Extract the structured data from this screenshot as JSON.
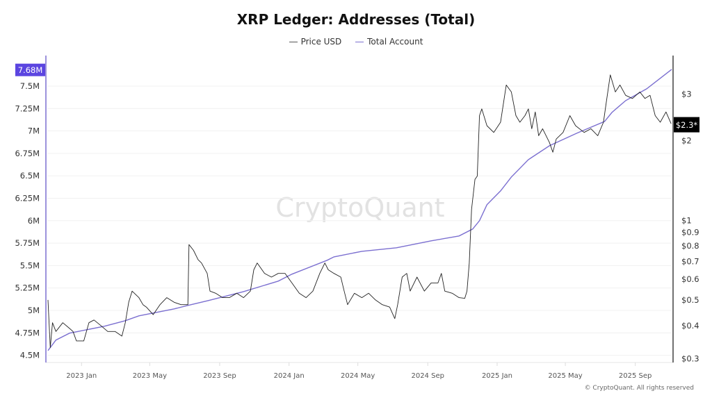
{
  "chart_data": {
    "type": "line",
    "title": "XRP Ledger: Addresses (Total)",
    "watermark": "CryptoQuant",
    "copyright": "© CryptoQuant. All rights reserved",
    "legend_placement": "top-center",
    "grid": true,
    "colors": {
      "price": "#222222",
      "account": "#7b6fd0",
      "left_axis": "#7b6fd0",
      "left_badge": "#5b45e0",
      "right_badge": "#000000"
    },
    "x_ticks": [
      {
        "date": "2023-01-01",
        "label": "2023 Jan"
      },
      {
        "date": "2023-05-01",
        "label": "2023 May"
      },
      {
        "date": "2023-09-01",
        "label": "2023 Sep"
      },
      {
        "date": "2024-01-01",
        "label": "2024 Jan"
      },
      {
        "date": "2024-05-01",
        "label": "2024 May"
      },
      {
        "date": "2024-09-01",
        "label": "2024 Sep"
      },
      {
        "date": "2025-01-01",
        "label": "2025 Jan"
      },
      {
        "date": "2025-05-01",
        "label": "2025 May"
      },
      {
        "date": "2025-09-01",
        "label": "2025 Sep"
      }
    ],
    "xlim": [
      "2022-11-03",
      "2025-11-04"
    ],
    "left_axis": {
      "ylim": [
        4.42,
        7.84
      ],
      "ticks": [
        {
          "v": 4.5,
          "label": "4.5M"
        },
        {
          "v": 4.75,
          "label": "4.75M"
        },
        {
          "v": 5,
          "label": "5M"
        },
        {
          "v": 5.25,
          "label": "5.25M"
        },
        {
          "v": 5.5,
          "label": "5.5M"
        },
        {
          "v": 5.75,
          "label": "5.75M"
        },
        {
          "v": 6,
          "label": "6M"
        },
        {
          "v": 6.25,
          "label": "6.25M"
        },
        {
          "v": 6.5,
          "label": "6.5M"
        },
        {
          "v": 6.75,
          "label": "6.75M"
        },
        {
          "v": 7,
          "label": "7M"
        },
        {
          "v": 7.25,
          "label": "7.25M"
        },
        {
          "v": 7.5,
          "label": "7.5M"
        }
      ],
      "current": {
        "v": 7.68,
        "label": "7.68M"
      }
    },
    "right_axis": {
      "scale": "log",
      "ylim": [
        0.29,
        4.2
      ],
      "ticks": [
        {
          "v": 0.3,
          "label": "$0.3"
        },
        {
          "v": 0.4,
          "label": "$0.4"
        },
        {
          "v": 0.5,
          "label": "$0.5"
        },
        {
          "v": 0.6,
          "label": "$0.6"
        },
        {
          "v": 0.7,
          "label": "$0.7"
        },
        {
          "v": 0.8,
          "label": "$0.8"
        },
        {
          "v": 0.9,
          "label": "$0.9"
        },
        {
          "v": 1,
          "label": "$1"
        },
        {
          "v": 2,
          "label": "$2"
        },
        {
          "v": 3,
          "label": "$3"
        }
      ],
      "current": {
        "v": 2.3,
        "label": "$2.3*"
      }
    },
    "series": [
      {
        "name": "Price USD",
        "axis": "right",
        "points": [
          [
            "2022-11-03",
            0.5
          ],
          [
            "2022-11-07",
            0.33
          ],
          [
            "2022-11-11",
            0.41
          ],
          [
            "2022-11-17",
            0.38
          ],
          [
            "2022-11-29",
            0.41
          ],
          [
            "2022-12-11",
            0.39
          ],
          [
            "2022-12-17",
            0.38
          ],
          [
            "2022-12-23",
            0.35
          ],
          [
            "2023-01-05",
            0.35
          ],
          [
            "2023-01-14",
            0.41
          ],
          [
            "2023-01-23",
            0.42
          ],
          [
            "2023-02-04",
            0.4
          ],
          [
            "2023-02-16",
            0.38
          ],
          [
            "2023-03-01",
            0.38
          ],
          [
            "2023-03-13",
            0.365
          ],
          [
            "2023-03-19",
            0.41
          ],
          [
            "2023-03-25",
            0.49
          ],
          [
            "2023-03-31",
            0.54
          ],
          [
            "2023-04-12",
            0.51
          ],
          [
            "2023-04-19",
            0.48
          ],
          [
            "2023-04-25",
            0.47
          ],
          [
            "2023-05-07",
            0.44
          ],
          [
            "2023-05-19",
            0.48
          ],
          [
            "2023-05-31",
            0.51
          ],
          [
            "2023-06-13",
            0.49
          ],
          [
            "2023-06-25",
            0.48
          ],
          [
            "2023-07-07",
            0.48
          ],
          [
            "2023-07-09",
            0.81
          ],
          [
            "2023-07-17",
            0.77
          ],
          [
            "2023-07-25",
            0.71
          ],
          [
            "2023-07-31",
            0.69
          ],
          [
            "2023-08-10",
            0.63
          ],
          [
            "2023-08-15",
            0.54
          ],
          [
            "2023-08-25",
            0.53
          ],
          [
            "2023-09-06",
            0.51
          ],
          [
            "2023-09-18",
            0.51
          ],
          [
            "2023-10-01",
            0.53
          ],
          [
            "2023-10-13",
            0.51
          ],
          [
            "2023-10-25",
            0.54
          ],
          [
            "2023-10-31",
            0.65
          ],
          [
            "2023-11-06",
            0.69
          ],
          [
            "2023-11-19",
            0.63
          ],
          [
            "2023-12-01",
            0.61
          ],
          [
            "2023-12-13",
            0.63
          ],
          [
            "2023-12-25",
            0.63
          ],
          [
            "2024-01-06",
            0.58
          ],
          [
            "2024-01-19",
            0.53
          ],
          [
            "2024-01-31",
            0.51
          ],
          [
            "2024-02-12",
            0.54
          ],
          [
            "2024-02-24",
            0.63
          ],
          [
            "2024-03-04",
            0.69
          ],
          [
            "2024-03-10",
            0.65
          ],
          [
            "2024-03-20",
            0.63
          ],
          [
            "2024-04-01",
            0.61
          ],
          [
            "2024-04-07",
            0.54
          ],
          [
            "2024-04-13",
            0.48
          ],
          [
            "2024-04-25",
            0.53
          ],
          [
            "2024-05-08",
            0.51
          ],
          [
            "2024-05-20",
            0.53
          ],
          [
            "2024-06-01",
            0.5
          ],
          [
            "2024-06-13",
            0.48
          ],
          [
            "2024-06-26",
            0.47
          ],
          [
            "2024-07-05",
            0.425
          ],
          [
            "2024-07-10",
            0.48
          ],
          [
            "2024-07-18",
            0.61
          ],
          [
            "2024-07-26",
            0.63
          ],
          [
            "2024-08-01",
            0.54
          ],
          [
            "2024-08-13",
            0.61
          ],
          [
            "2024-08-26",
            0.54
          ],
          [
            "2024-09-07",
            0.58
          ],
          [
            "2024-09-19",
            0.58
          ],
          [
            "2024-09-25",
            0.63
          ],
          [
            "2024-10-01",
            0.54
          ],
          [
            "2024-10-14",
            0.53
          ],
          [
            "2024-10-26",
            0.51
          ],
          [
            "2024-11-05",
            0.507
          ],
          [
            "2024-11-09",
            0.54
          ],
          [
            "2024-11-13",
            0.69
          ],
          [
            "2024-11-17",
            1.1
          ],
          [
            "2024-11-23",
            1.43
          ],
          [
            "2024-11-27",
            1.47
          ],
          [
            "2024-12-01",
            2.49
          ],
          [
            "2024-12-05",
            2.64
          ],
          [
            "2024-12-14",
            2.28
          ],
          [
            "2024-12-26",
            2.15
          ],
          [
            "2025-01-07",
            2.35
          ],
          [
            "2025-01-17",
            3.25
          ],
          [
            "2025-01-26",
            3.06
          ],
          [
            "2025-02-03",
            2.49
          ],
          [
            "2025-02-10",
            2.35
          ],
          [
            "2025-02-19",
            2.49
          ],
          [
            "2025-02-25",
            2.64
          ],
          [
            "2025-03-03",
            2.22
          ],
          [
            "2025-03-09",
            2.57
          ],
          [
            "2025-03-15",
            2.09
          ],
          [
            "2025-03-22",
            2.22
          ],
          [
            "2025-04-03",
            1.97
          ],
          [
            "2025-04-09",
            1.81
          ],
          [
            "2025-04-15",
            2.03
          ],
          [
            "2025-04-27",
            2.15
          ],
          [
            "2025-05-09",
            2.49
          ],
          [
            "2025-05-19",
            2.28
          ],
          [
            "2025-06-03",
            2.15
          ],
          [
            "2025-06-15",
            2.22
          ],
          [
            "2025-06-27",
            2.09
          ],
          [
            "2025-07-07",
            2.35
          ],
          [
            "2025-07-12",
            2.8
          ],
          [
            "2025-07-19",
            3.55
          ],
          [
            "2025-07-28",
            3.06
          ],
          [
            "2025-08-05",
            3.25
          ],
          [
            "2025-08-15",
            2.97
          ],
          [
            "2025-08-27",
            2.89
          ],
          [
            "2025-09-09",
            3.06
          ],
          [
            "2025-09-18",
            2.89
          ],
          [
            "2025-09-27",
            2.97
          ],
          [
            "2025-10-06",
            2.49
          ],
          [
            "2025-10-15",
            2.35
          ],
          [
            "2025-10-25",
            2.57
          ],
          [
            "2025-11-03",
            2.32
          ]
        ]
      },
      {
        "name": "Total Account",
        "axis": "left",
        "points": [
          [
            "2022-11-03",
            4.553
          ],
          [
            "2022-11-17",
            4.67
          ],
          [
            "2022-12-11",
            4.747
          ],
          [
            "2023-02-10",
            4.824
          ],
          [
            "2023-03-19",
            4.886
          ],
          [
            "2023-04-12",
            4.94
          ],
          [
            "2023-06-13",
            5.017
          ],
          [
            "2023-07-07",
            5.056
          ],
          [
            "2023-08-12",
            5.11
          ],
          [
            "2023-10-13",
            5.21
          ],
          [
            "2023-12-13",
            5.327
          ],
          [
            "2024-01-06",
            5.404
          ],
          [
            "2024-03-08",
            5.559
          ],
          [
            "2024-03-20",
            5.597
          ],
          [
            "2024-05-08",
            5.659
          ],
          [
            "2024-07-08",
            5.698
          ],
          [
            "2024-09-07",
            5.776
          ],
          [
            "2024-10-26",
            5.83
          ],
          [
            "2024-11-19",
            5.907
          ],
          [
            "2024-12-01",
            6.0
          ],
          [
            "2024-12-14",
            6.178
          ],
          [
            "2025-01-07",
            6.332
          ],
          [
            "2025-01-26",
            6.487
          ],
          [
            "2025-02-25",
            6.68
          ],
          [
            "2025-04-03",
            6.835
          ],
          [
            "2025-05-21",
            6.974
          ],
          [
            "2025-07-09",
            7.106
          ],
          [
            "2025-07-22",
            7.206
          ],
          [
            "2025-08-15",
            7.338
          ],
          [
            "2025-09-21",
            7.469
          ],
          [
            "2025-11-04",
            7.686
          ]
        ]
      }
    ]
  }
}
